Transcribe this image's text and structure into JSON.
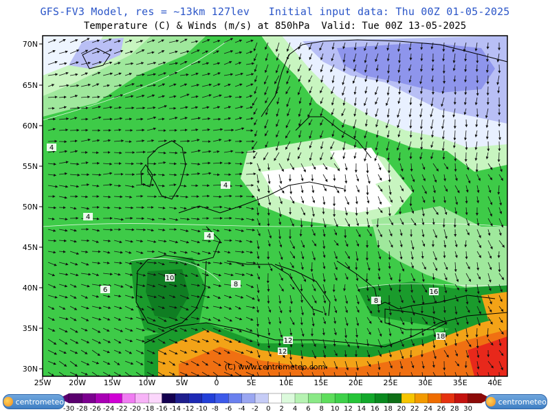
{
  "header": {
    "line1": "GFS-FV3 Model, res = ~13km 127lev   Initial input data: Thu 00Z 01-05-2025",
    "line2": "Temperature (C) & Winds (m/s) at 850hPa  Valid: Tue 00Z 13-05-2025"
  },
  "map": {
    "lat_ticks": [
      "70N",
      "65N",
      "60N",
      "55N",
      "50N",
      "45N",
      "40N",
      "35N",
      "30N"
    ],
    "lon_ticks": [
      "25W",
      "20W",
      "15W",
      "10W",
      "5W",
      "0",
      "5E",
      "10E",
      "15E",
      "20E",
      "25E",
      "30E",
      "35E",
      "40E"
    ],
    "watermark": "(C) www.centrometeo.com",
    "contour_labels": [
      "4",
      "4",
      "4",
      "4",
      "6",
      "8",
      "10",
      "12",
      "12",
      "16",
      "18",
      "8"
    ],
    "colors": {
      "sea_green": "#35c843",
      "land_green": "#49d352",
      "light_green": "#9fe89c",
      "pale_green": "#c8f5c0",
      "dark_green": "#1a9b2c",
      "forest_green": "#0f7d22",
      "orange": "#f3a317",
      "deep_orange": "#f07012",
      "red": "#e8281b",
      "cold_blue": "#8e95ec",
      "cold_light": "#c2c6f5"
    }
  },
  "colorbar": {
    "labels": [
      "-30",
      "-28",
      "-26",
      "-24",
      "-22",
      "-20",
      "-18",
      "-16",
      "-14",
      "-12",
      "-10",
      "-8",
      "-6",
      "-4",
      "-2",
      "0",
      "2",
      "4",
      "6",
      "8",
      "10",
      "12",
      "14",
      "16",
      "18",
      "20",
      "22",
      "24",
      "26",
      "28",
      "30"
    ],
    "colors": [
      "#5a006e",
      "#7b008f",
      "#a800b4",
      "#d000d5",
      "#f07cf2",
      "#f7b3f7",
      "#fbd6fb",
      "#140050",
      "#1e1e8c",
      "#1e2ab4",
      "#2340d8",
      "#3d5ae9",
      "#6a80ee",
      "#9aa6f1",
      "#c6ccf6",
      "#ffffff",
      "#dcfadc",
      "#b6f2b2",
      "#8ae886",
      "#5edd5c",
      "#3fd14a",
      "#26c438",
      "#13a82b",
      "#0a8a1f",
      "#0f6f17",
      "#f6c500",
      "#f39a00",
      "#ef6d00",
      "#e53310",
      "#c4120e",
      "#8c0a08"
    ]
  },
  "branding": {
    "left": "centrometeo",
    "right": "centrometeo"
  }
}
